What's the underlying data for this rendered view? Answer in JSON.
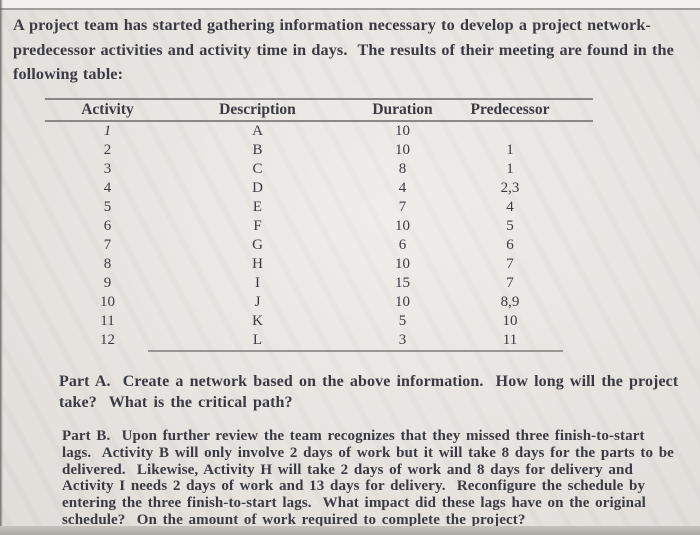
{
  "document": {
    "intro": "A project team has started gathering information necessary to develop a project network-\npredecessor activities and activity time in days.  The results of their meeting are found in the\nfollowing table:",
    "part_a": "Part A.  Create a network based on the above information.  How long will the project\ntake?  What is the critical path?",
    "part_b": "Part B.  Upon further review the team recognizes that they missed three finish-to-start\nlags.  Activity B will only involve 2 days of work but it will take 8 days for the parts to be\ndelivered.  Likewise, Activity H will take 2 days of work and 8 days for delivery and\nActivity I needs 2 days of work and 13 days for delivery.  Reconfigure the schedule by\nentering the three finish-to-start lags.  What impact did these lags have on the original\nschedule?  On the amount of work required to complete the project?"
  },
  "table": {
    "headers": [
      "Activity",
      "Description",
      "Duration",
      "Predecessor"
    ],
    "rows": [
      {
        "activity": "1",
        "description": "A",
        "duration": "10",
        "predecessor": ""
      },
      {
        "activity": "2",
        "description": "B",
        "duration": "10",
        "predecessor": "1"
      },
      {
        "activity": "3",
        "description": "C",
        "duration": "8",
        "predecessor": "1"
      },
      {
        "activity": "4",
        "description": "D",
        "duration": "4",
        "predecessor": "2,3"
      },
      {
        "activity": "5",
        "description": "E",
        "duration": "7",
        "predecessor": "4"
      },
      {
        "activity": "6",
        "description": "F",
        "duration": "10",
        "predecessor": "5"
      },
      {
        "activity": "7",
        "description": "G",
        "duration": "6",
        "predecessor": "6"
      },
      {
        "activity": "8",
        "description": "H",
        "duration": "10",
        "predecessor": "7"
      },
      {
        "activity": "9",
        "description": "I",
        "duration": "15",
        "predecessor": "7"
      },
      {
        "activity": "10",
        "description": "J",
        "duration": "10",
        "predecessor": "8,9"
      },
      {
        "activity": "11",
        "description": "K",
        "duration": "5",
        "predecessor": "10"
      },
      {
        "activity": "12",
        "description": "L",
        "duration": "3",
        "predecessor": "11"
      }
    ]
  },
  "colors": {
    "ink": "#3a3a44",
    "rule_line": "#8a8884",
    "paper_background": "#e9e6e1"
  }
}
